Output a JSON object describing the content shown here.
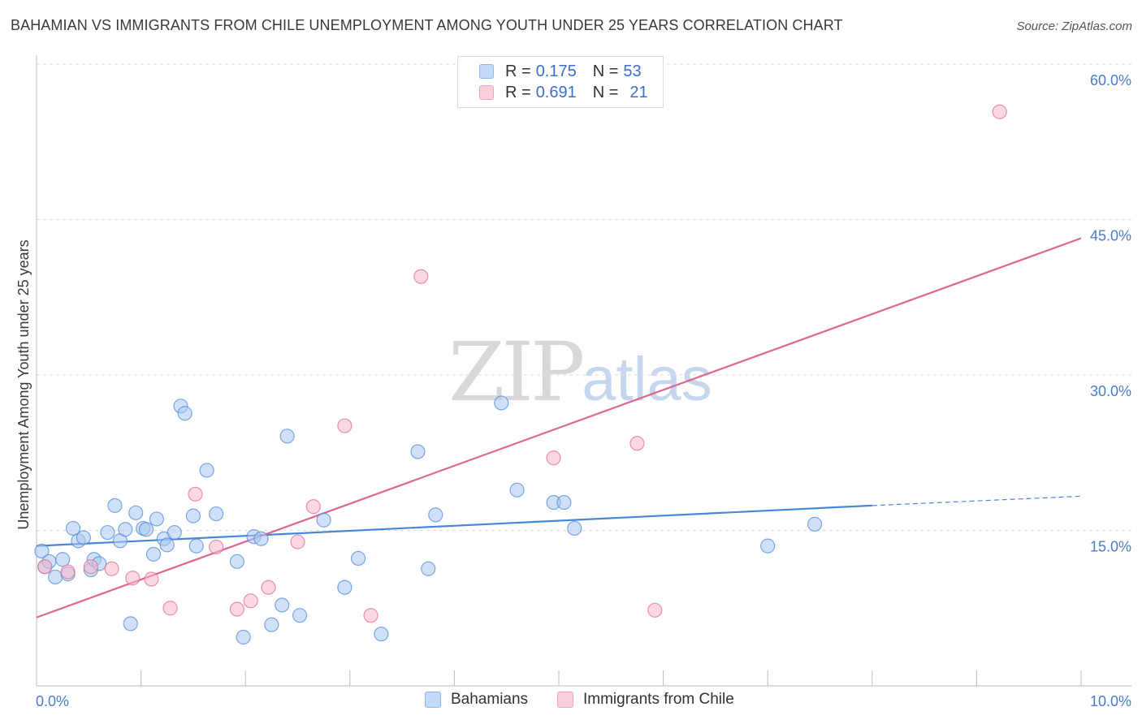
{
  "title": "BAHAMIAN VS IMMIGRANTS FROM CHILE UNEMPLOYMENT AMONG YOUTH UNDER 25 YEARS CORRELATION CHART",
  "source": "Source: ZipAtlas.com",
  "watermark": {
    "zip": "ZIP",
    "atlas": "atlas"
  },
  "legend_top": [
    {
      "r_label": "R =",
      "r_value": "0.175",
      "n_label": "N =",
      "n_value": "53",
      "color": "#a9c8f0"
    },
    {
      "r_label": "R =",
      "r_value": "0.691",
      "n_label": "N =",
      "n_value": "21",
      "color": "#f7b8cb"
    }
  ],
  "legend_bottom": [
    {
      "label": "Bahamians",
      "color": "#a9c8f0"
    },
    {
      "label": "Immigrants from Chile",
      "color": "#f7b8cb"
    }
  ],
  "chart_data": {
    "type": "scatter",
    "title": "BAHAMIAN VS IMMIGRANTS FROM CHILE UNEMPLOYMENT AMONG YOUTH UNDER 25 YEARS CORRELATION CHART",
    "xlabel": "",
    "ylabel": "Unemployment Among Youth under 25 years",
    "xlim": [
      0,
      10
    ],
    "ylim": [
      0,
      60
    ],
    "x_tick_labels": [
      "0.0%",
      "10.0%"
    ],
    "y_ticks": [
      15,
      30,
      45,
      60
    ],
    "y_tick_labels": [
      "15.0%",
      "30.0%",
      "45.0%",
      "60.0%"
    ],
    "grid": true,
    "series": [
      {
        "name": "Bahamians",
        "color": "#4a86d8",
        "fill": "#a9c8f0",
        "points": [
          [
            0.05,
            13.0
          ],
          [
            0.08,
            11.5
          ],
          [
            0.12,
            12.0
          ],
          [
            0.18,
            10.5
          ],
          [
            0.25,
            12.2
          ],
          [
            0.3,
            10.8
          ],
          [
            0.35,
            15.2
          ],
          [
            0.4,
            14.0
          ],
          [
            0.45,
            14.3
          ],
          [
            0.52,
            11.2
          ],
          [
            0.55,
            12.2
          ],
          [
            0.6,
            11.8
          ],
          [
            0.68,
            14.8
          ],
          [
            0.75,
            17.4
          ],
          [
            0.8,
            14.0
          ],
          [
            0.85,
            15.1
          ],
          [
            0.9,
            6.0
          ],
          [
            0.95,
            16.7
          ],
          [
            1.02,
            15.2
          ],
          [
            1.05,
            15.1
          ],
          [
            1.12,
            12.7
          ],
          [
            1.15,
            16.1
          ],
          [
            1.22,
            14.2
          ],
          [
            1.25,
            13.6
          ],
          [
            1.32,
            14.8
          ],
          [
            1.38,
            27.0
          ],
          [
            1.42,
            26.3
          ],
          [
            1.5,
            16.4
          ],
          [
            1.53,
            13.5
          ],
          [
            1.63,
            20.8
          ],
          [
            1.72,
            16.6
          ],
          [
            1.92,
            12.0
          ],
          [
            1.98,
            4.7
          ],
          [
            2.08,
            14.4
          ],
          [
            2.15,
            14.2
          ],
          [
            2.25,
            5.9
          ],
          [
            2.35,
            7.8
          ],
          [
            2.4,
            24.1
          ],
          [
            2.52,
            6.8
          ],
          [
            2.75,
            16.0
          ],
          [
            2.95,
            9.5
          ],
          [
            3.08,
            12.3
          ],
          [
            3.3,
            5.0
          ],
          [
            3.65,
            22.6
          ],
          [
            3.75,
            11.3
          ],
          [
            3.82,
            16.5
          ],
          [
            4.45,
            27.3
          ],
          [
            4.6,
            18.9
          ],
          [
            4.95,
            17.7
          ],
          [
            5.05,
            17.7
          ],
          [
            5.15,
            15.2
          ],
          [
            7.0,
            13.5
          ],
          [
            7.45,
            15.6
          ]
        ],
        "trendline": {
          "x": [
            0,
            8.0
          ],
          "y": [
            13.5,
            17.4
          ],
          "dashed_to": [
            10.0,
            18.3
          ]
        }
      },
      {
        "name": "Immigrants from Chile",
        "color": "#e0668f",
        "fill": "#f7b8cb",
        "points": [
          [
            0.08,
            11.5
          ],
          [
            0.3,
            11.0
          ],
          [
            0.52,
            11.5
          ],
          [
            0.72,
            11.3
          ],
          [
            0.92,
            10.4
          ],
          [
            1.1,
            10.3
          ],
          [
            1.28,
            7.5
          ],
          [
            1.52,
            18.5
          ],
          [
            1.72,
            13.4
          ],
          [
            1.92,
            7.4
          ],
          [
            2.05,
            8.2
          ],
          [
            2.22,
            9.5
          ],
          [
            2.5,
            13.9
          ],
          [
            2.65,
            17.3
          ],
          [
            2.95,
            25.1
          ],
          [
            3.2,
            6.8
          ],
          [
            3.68,
            39.5
          ],
          [
            4.95,
            22.0
          ],
          [
            5.75,
            23.4
          ],
          [
            5.92,
            7.3
          ],
          [
            9.22,
            55.4
          ]
        ],
        "trendline": {
          "x": [
            0,
            10.0
          ],
          "y": [
            6.6,
            43.2
          ]
        }
      }
    ]
  }
}
